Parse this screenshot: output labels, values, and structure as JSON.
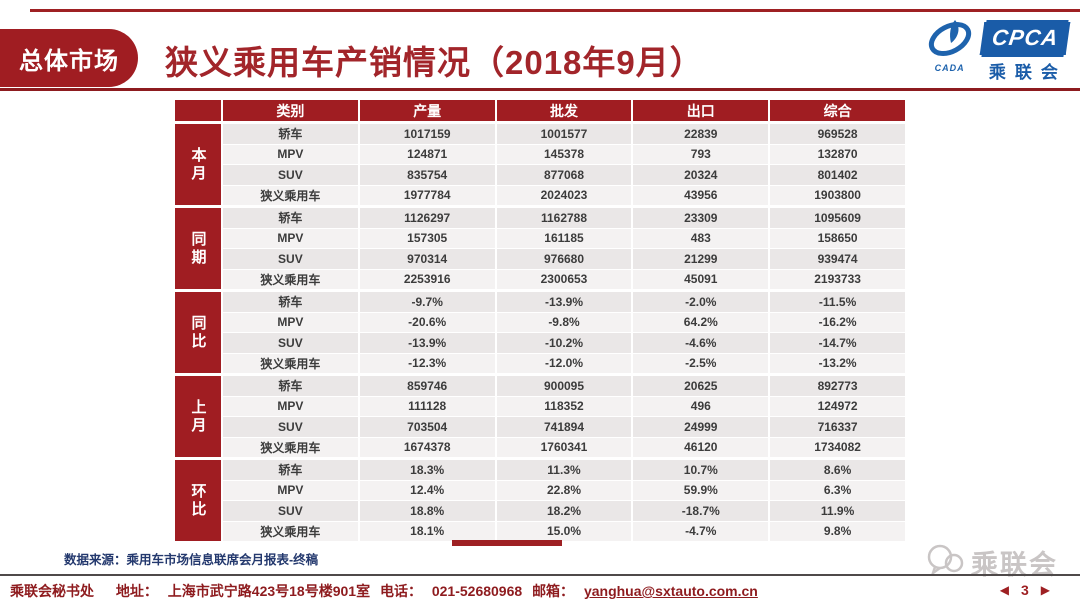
{
  "header": {
    "tag": "总体市场",
    "title": "狭义乘用车产销情况（2018年9月）"
  },
  "logo": {
    "cpca": "CPCA",
    "cada": "CADA",
    "name_cn": "乘联会"
  },
  "table": {
    "headers": [
      "类别",
      "产量",
      "批发",
      "出口",
      "综合"
    ],
    "groups": [
      {
        "label": "本月",
        "rows": [
          [
            "轿车",
            "1017159",
            "1001577",
            "22839",
            "969528"
          ],
          [
            "MPV",
            "124871",
            "145378",
            "793",
            "132870"
          ],
          [
            "SUV",
            "835754",
            "877068",
            "20324",
            "801402"
          ],
          [
            "狭义乘用车",
            "1977784",
            "2024023",
            "43956",
            "1903800"
          ]
        ]
      },
      {
        "label": "同期",
        "rows": [
          [
            "轿车",
            "1126297",
            "1162788",
            "23309",
            "1095609"
          ],
          [
            "MPV",
            "157305",
            "161185",
            "483",
            "158650"
          ],
          [
            "SUV",
            "970314",
            "976680",
            "21299",
            "939474"
          ],
          [
            "狭义乘用车",
            "2253916",
            "2300653",
            "45091",
            "2193733"
          ]
        ]
      },
      {
        "label": "同比",
        "rows": [
          [
            "轿车",
            "-9.7%",
            "-13.9%",
            "-2.0%",
            "-11.5%"
          ],
          [
            "MPV",
            "-20.6%",
            "-9.8%",
            "64.2%",
            "-16.2%"
          ],
          [
            "SUV",
            "-13.9%",
            "-10.2%",
            "-4.6%",
            "-14.7%"
          ],
          [
            "狭义乘用车",
            "-12.3%",
            "-12.0%",
            "-2.5%",
            "-13.2%"
          ]
        ]
      },
      {
        "label": "上月",
        "rows": [
          [
            "轿车",
            "859746",
            "900095",
            "20625",
            "892773"
          ],
          [
            "MPV",
            "111128",
            "118352",
            "496",
            "124972"
          ],
          [
            "SUV",
            "703504",
            "741894",
            "24999",
            "716337"
          ],
          [
            "狭义乘用车",
            "1674378",
            "1760341",
            "46120",
            "1734082"
          ]
        ]
      },
      {
        "label": "环比",
        "rows": [
          [
            "轿车",
            "18.3%",
            "11.3%",
            "10.7%",
            "8.6%"
          ],
          [
            "MPV",
            "12.4%",
            "22.8%",
            "59.9%",
            "6.3%"
          ],
          [
            "SUV",
            "18.8%",
            "18.2%",
            "-18.7%",
            "11.9%"
          ],
          [
            "狭义乘用车",
            "18.1%",
            "15.0%",
            "-4.7%",
            "9.8%"
          ]
        ]
      }
    ]
  },
  "source_note": "数据来源：乘用车市场信息联席会月报表-终稿",
  "watermark": "乘联会",
  "footer": {
    "org": "乘联会秘书处",
    "address_label": "地址：",
    "address": "上海市武宁路423号18号楼901室",
    "phone_label": "电话：",
    "phone": "021-52680968",
    "email_label": "邮箱：",
    "email": "yanghua@sxtauto.com.cn"
  },
  "pagination": {
    "prev": "◀",
    "page": "3",
    "next": "▶"
  },
  "colors": {
    "accent_red": "#a01d22",
    "title_red": "#a2252a",
    "logo_blue": "#1a5ca8",
    "note_navy": "#24396e",
    "row_gray": "#eae7e7",
    "row_light": "#f4f2f2"
  }
}
